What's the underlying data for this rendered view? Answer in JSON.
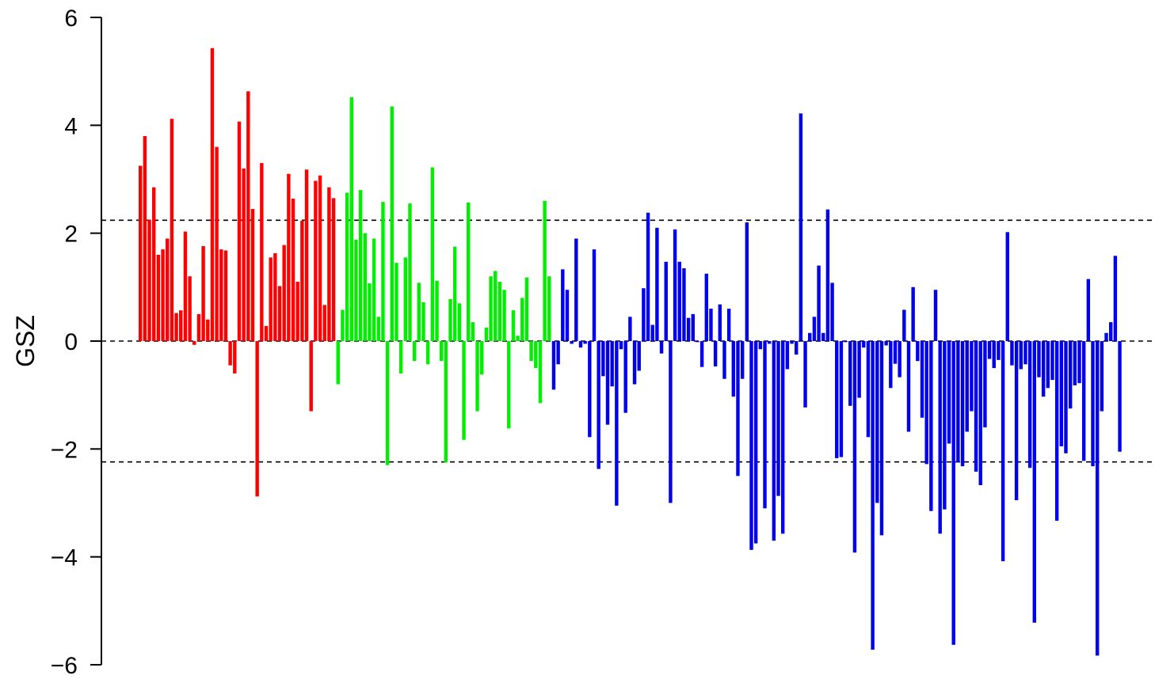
{
  "chart_data": {
    "type": "bar",
    "title": "",
    "xlabel": "",
    "ylabel": "GSZ",
    "ylim": [
      -6,
      6
    ],
    "yticks": [
      -6,
      -4,
      -2,
      0,
      2,
      4,
      6
    ],
    "ytick_labels": [
      "−6",
      "−4",
      "−2",
      "0",
      "2",
      "4",
      "6"
    ],
    "grid": false,
    "legend": "none",
    "reference_lines": [
      2.24,
      0,
      -2.24
    ],
    "series": [
      {
        "color": "#ff0000",
        "values": [
          3.25,
          3.8,
          2.25,
          2.85,
          1.6,
          1.7,
          1.9,
          4.12,
          0.52,
          0.57,
          2.03,
          1.2,
          -0.07,
          0.5,
          1.76,
          0.4,
          5.43,
          3.6,
          1.7,
          1.68,
          -0.45,
          -0.6,
          4.07,
          3.2,
          4.63,
          2.45,
          -2.88,
          3.3,
          0.28,
          1.55,
          1.63,
          1.02,
          1.78,
          3.1,
          2.64,
          1.1,
          2.23,
          3.18,
          -1.3,
          2.97,
          3.07,
          0.67,
          2.85,
          2.65
        ]
      },
      {
        "color": "#00ee00",
        "values": [
          -0.8,
          0.58,
          2.75,
          4.52,
          1.88,
          2.8,
          2.0,
          1.07,
          1.9,
          0.45,
          2.58,
          -2.3,
          4.35,
          1.45,
          -0.6,
          1.55,
          2.55,
          -0.37,
          1.08,
          0.72,
          -0.43,
          3.22,
          1.12,
          -0.37,
          -2.25,
          0.78,
          1.75,
          0.7,
          -1.83,
          2.57,
          0.35,
          -1.3,
          -0.62,
          0.25,
          1.2,
          1.3,
          1.1,
          0.95,
          -1.62,
          0.57,
          0.1,
          0.8,
          1.18,
          -0.37,
          -0.5,
          -1.15,
          2.6,
          1.2
        ]
      },
      {
        "color": "#0000ee",
        "values": [
          -0.9,
          -0.43,
          1.33,
          0.95,
          -0.05,
          1.9,
          -0.12,
          -0.05,
          -1.78,
          1.7,
          -2.37,
          -0.65,
          -1.55,
          -0.84,
          -3.05,
          -0.15,
          -1.33,
          0.45,
          -0.8,
          -0.55,
          0.98,
          2.38,
          0.3,
          2.1,
          -0.23,
          1.47,
          -3.0,
          2.07,
          1.47,
          1.35,
          0.43,
          0.5,
          -0.02,
          -0.48,
          1.25,
          0.6,
          -0.47,
          0.68,
          -0.7,
          0.6,
          -1.03,
          -2.5,
          -0.7,
          2.2,
          -3.87,
          -3.75,
          -0.15,
          -3.1,
          -0.05,
          -3.7,
          -2.87,
          -3.57,
          -0.52,
          -0.05,
          -0.25,
          4.22,
          -1.23,
          0.15,
          0.45,
          1.4,
          0.15,
          2.44,
          1.08,
          -2.17,
          -2.15,
          -0.02,
          -1.2,
          -3.92,
          -1.05,
          -0.12,
          -1.78,
          -5.72,
          -3.0,
          -3.6,
          -0.08,
          -0.87,
          -0.42,
          -0.67,
          0.58,
          -1.68,
          1.0,
          -0.37,
          -1.42,
          -2.28,
          -3.15,
          0.95,
          -3.57,
          -3.12,
          -1.9,
          -5.63,
          -2.25,
          -2.32,
          -1.68,
          -1.3,
          -2.42,
          -2.67,
          -1.6,
          -0.33,
          -0.5,
          -0.35,
          -4.08,
          2.02,
          -0.45,
          -2.95,
          -0.52,
          -0.43,
          -2.35,
          -5.22,
          -0.67,
          -1.03,
          -0.87,
          -0.72,
          -3.33,
          -1.95,
          -2.08,
          -1.25,
          -0.82,
          -0.78,
          -2.22,
          1.15,
          -2.32,
          -5.83,
          -1.3,
          0.15,
          0.35,
          1.58,
          -2.05
        ]
      }
    ]
  }
}
